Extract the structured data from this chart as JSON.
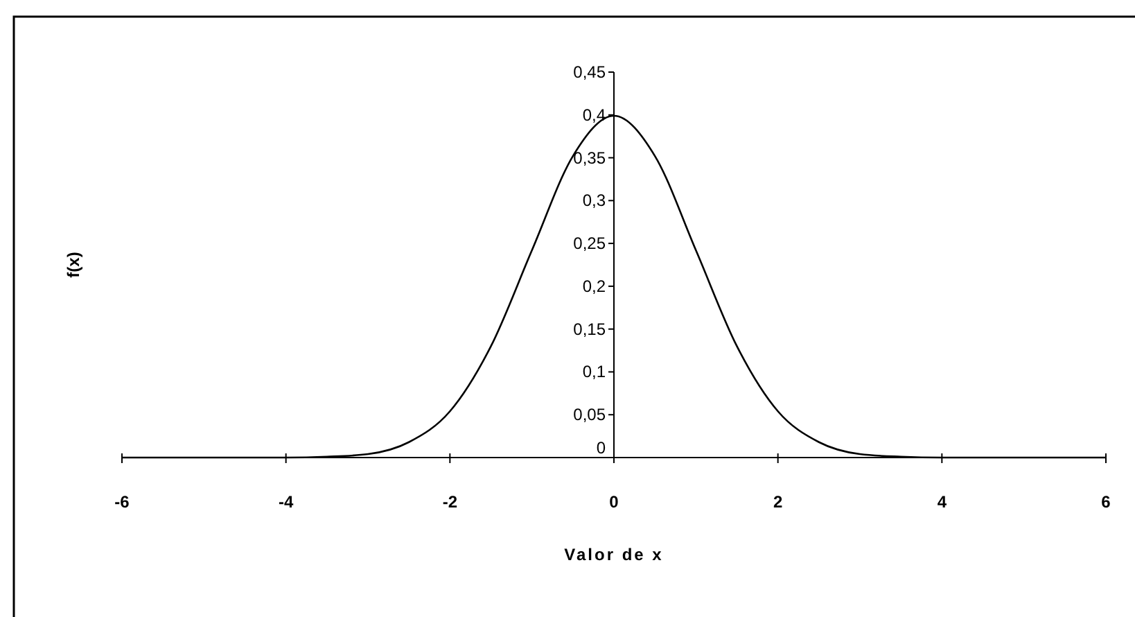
{
  "chart_data": {
    "type": "line",
    "xlabel": "Valor de x",
    "ylabel": "f(x)",
    "x": [
      -6,
      -5.5,
      -5,
      -4.5,
      -4,
      -3.5,
      -3,
      -2.5,
      -2,
      -1.5,
      -1,
      -0.5,
      0,
      0.5,
      1,
      1.5,
      2,
      2.5,
      3,
      3.5,
      4,
      4.5,
      5,
      5.5,
      6
    ],
    "series": [
      {
        "color": "#000000",
        "values": [
          0,
          0,
          0,
          0,
          0,
          0.001,
          0.004,
          0.018,
          0.054,
          0.13,
          0.242,
          0.352,
          0.399,
          0.352,
          0.242,
          0.13,
          0.054,
          0.018,
          0.004,
          0.001,
          0,
          0,
          0,
          0,
          0
        ]
      }
    ],
    "xlim": [
      -6,
      6
    ],
    "xticks": [
      -6,
      -4,
      -2,
      0,
      2,
      4,
      6
    ],
    "ylim": [
      0,
      0.45
    ],
    "yticks": [
      0,
      {
        "value": 0.05,
        "label": "0,05"
      },
      {
        "value": 0.1,
        "label": "0,1"
      },
      {
        "value": 0.15,
        "label": "0,15"
      },
      {
        "value": 0.2,
        "label": "0,2"
      },
      {
        "value": 0.25,
        "label": "0,25"
      },
      {
        "value": 0.3,
        "label": "0,3"
      },
      {
        "value": 0.35,
        "label": "0,35"
      },
      {
        "value": 0.4,
        "label": "0,4"
      },
      {
        "value": 0.45,
        "label": "0,45"
      }
    ],
    "grid": false,
    "marker": "none",
    "line_style": "solid"
  }
}
